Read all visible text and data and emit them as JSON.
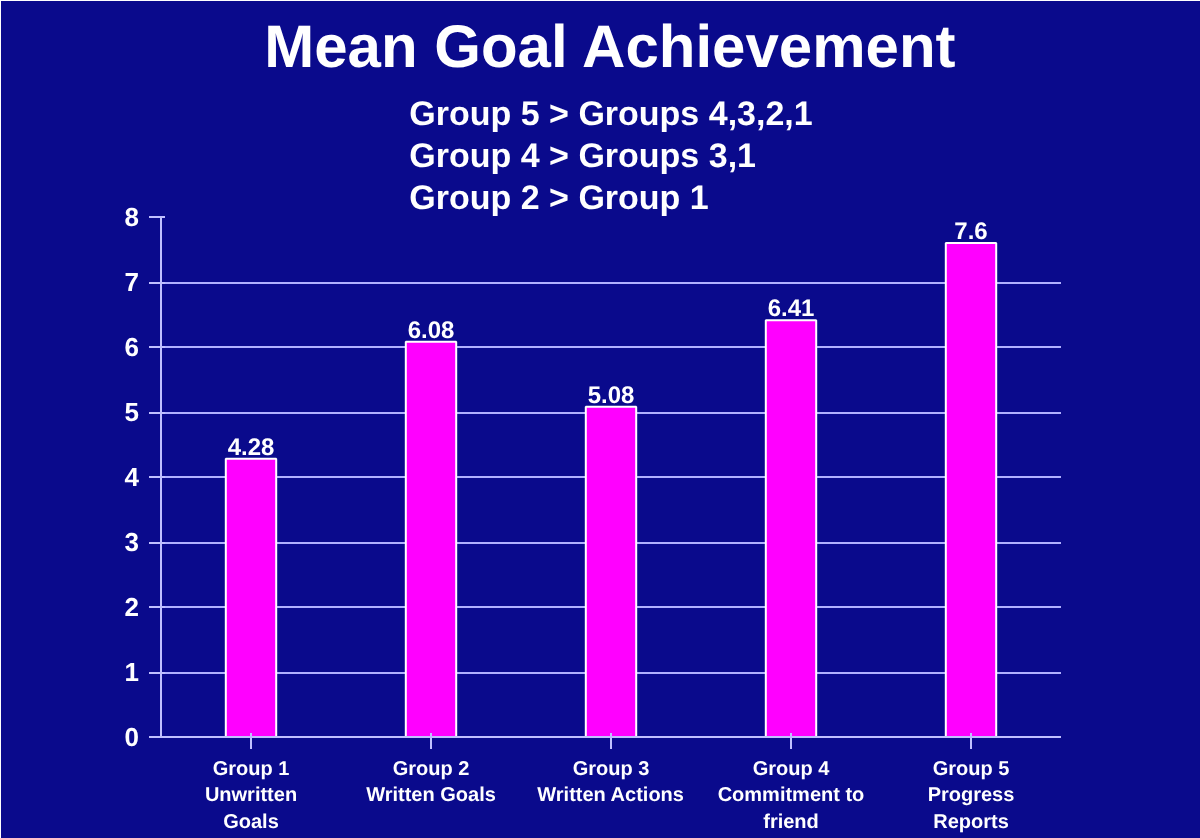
{
  "chart_data": {
    "type": "bar",
    "title": "Mean Goal Achievement",
    "subtitle": "Group 5 > Groups 4,3,2,1\nGroup 4 > Groups 3,1\nGroup 2 > Group 1",
    "categories": [
      "Group 1\nUnwritten\nGoals",
      "Group 2\nWritten Goals",
      "Group 3\nWritten Actions",
      "Group 4\nCommitment to\nfriend",
      "Group 5\nProgress\nReports"
    ],
    "values": [
      4.28,
      6.08,
      5.08,
      6.41,
      7.6
    ],
    "color": "#ff00ff",
    "data_labels": true,
    "ylim": [
      0,
      8
    ],
    "yticks": [
      0,
      1,
      2,
      3,
      4,
      5,
      6,
      7,
      8
    ],
    "grid": "y"
  }
}
